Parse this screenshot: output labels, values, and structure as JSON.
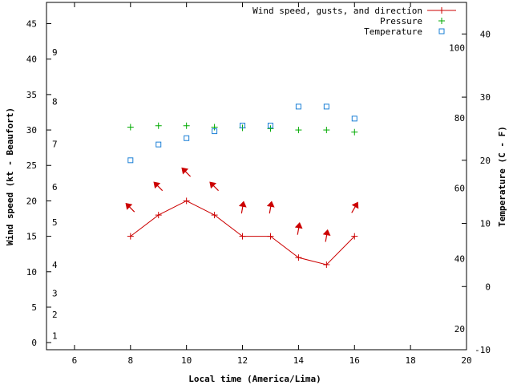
{
  "chart_data": {
    "type": "line",
    "xlabel": "Local time (America/Lima)",
    "ylabel": "Wind speed (kt - Beaufort)",
    "y2label": "Temperature (C - F)",
    "xlim": [
      5,
      20
    ],
    "ylim": [
      -1,
      48
    ],
    "y2lim": [
      -10,
      45
    ],
    "x_ticks": [
      6,
      8,
      10,
      12,
      14,
      16,
      18,
      20
    ],
    "y_ticks": [
      0,
      5,
      10,
      15,
      20,
      25,
      30,
      35,
      40,
      45
    ],
    "y2_ticks": [
      -10,
      0,
      10,
      20,
      30,
      40
    ],
    "beaufort_labels": [
      {
        "label": "1",
        "kt": 1
      },
      {
        "label": "2",
        "kt": 4
      },
      {
        "label": "3",
        "kt": 7
      },
      {
        "label": "4",
        "kt": 11
      },
      {
        "label": "5",
        "kt": 17
      },
      {
        "label": "6",
        "kt": 22
      },
      {
        "label": "7",
        "kt": 28
      },
      {
        "label": "8",
        "kt": 34
      },
      {
        "label": "9",
        "kt": 41
      }
    ],
    "fahrenheit_labels": [
      {
        "label": "20",
        "c": -6.7
      },
      {
        "label": "40",
        "c": 4.4
      },
      {
        "label": "60",
        "c": 15.6
      },
      {
        "label": "80",
        "c": 26.7
      },
      {
        "label": "100",
        "c": 37.8
      }
    ],
    "legend": [
      {
        "name": "Wind speed, gusts, and direction",
        "color": "#cc0000",
        "marker": "line-plus"
      },
      {
        "name": "Pressure",
        "color": "#00aa00",
        "marker": "plus"
      },
      {
        "name": "Temperature",
        "color": "#1a7fd6",
        "marker": "square"
      }
    ],
    "series": [
      {
        "name": "Wind speed, gusts, and direction",
        "x": [
          8,
          9,
          10,
          11,
          12,
          13,
          14,
          15,
          16
        ],
        "values": [
          15,
          18,
          20,
          18,
          15,
          15,
          12,
          11,
          15
        ]
      },
      {
        "name": "Pressure",
        "x": [
          8,
          9,
          10,
          11,
          12,
          13,
          14,
          15,
          16
        ],
        "values": [
          30.4,
          30.6,
          30.6,
          30.4,
          30.3,
          30.2,
          30.0,
          30.0,
          29.7
        ]
      },
      {
        "name": "Temperature",
        "axis": "y2",
        "x": [
          8,
          9,
          10,
          11,
          12,
          13,
          14,
          15,
          16
        ],
        "values": [
          20,
          22.5,
          23.5,
          24.6,
          25.5,
          25.5,
          28.5,
          28.5,
          26.6
        ]
      }
    ],
    "wind_direction_deg": [
      315,
      315,
      315,
      315,
      10,
      10,
      10,
      10,
      30
    ],
    "wind_arrow_kt": [
      19,
      22,
      24,
      22,
      19,
      19,
      16,
      15,
      19
    ]
  }
}
